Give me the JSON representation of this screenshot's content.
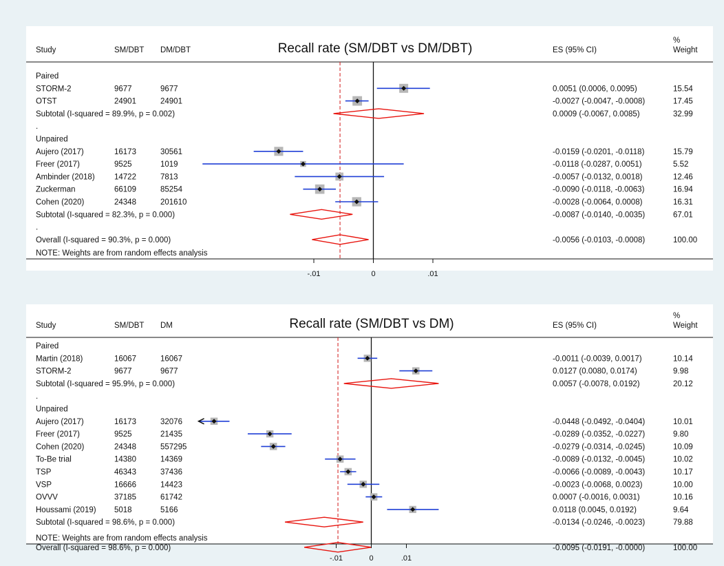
{
  "chart_data": [
    {
      "type": "forest",
      "title": "Recall rate (SM/DBT vs DM/DBT)",
      "columns": {
        "study": "Study",
        "n1": "SM/DBT",
        "n2": "DM/DBT",
        "es": "ES (95% CI)",
        "weight_line1": "%",
        "weight_line2": "Weight"
      },
      "null_line": 0,
      "overall_line": -0.0056,
      "x_ticks": [
        -0.01,
        0,
        0.01
      ],
      "x_tick_labels": [
        "-.01",
        "0",
        ".01"
      ],
      "note": "NOTE: Weights are from random effects analysis",
      "rows": [
        {
          "kind": "group",
          "label": "Paired"
        },
        {
          "kind": "study",
          "label": "STORM-2",
          "n1": "9677",
          "n2": "9677",
          "es": 0.0051,
          "lo": 0.0006,
          "hi": 0.0095,
          "es_text": "0.0051 (0.0006, 0.0095)",
          "weight": "15.54"
        },
        {
          "kind": "study",
          "label": "OTST",
          "n1": "24901",
          "n2": "24901",
          "es": -0.0027,
          "lo": -0.0047,
          "hi": -0.0008,
          "es_text": "-0.0027 (-0.0047, -0.0008)",
          "weight": "17.45"
        },
        {
          "kind": "subtotal",
          "label": "Subtotal  (I-squared = 89.9%, p = 0.002)",
          "es": 0.0009,
          "lo": -0.0067,
          "hi": 0.0085,
          "es_text": "0.0009 (-0.0067, 0.0085)",
          "weight": "32.99"
        },
        {
          "kind": "dot",
          "label": "."
        },
        {
          "kind": "group",
          "label": "Unpaired"
        },
        {
          "kind": "study",
          "label": "Aujero (2017)",
          "n1": "16173",
          "n2": "30561",
          "es": -0.0159,
          "lo": -0.0201,
          "hi": -0.0118,
          "es_text": "-0.0159 (-0.0201, -0.0118)",
          "weight": "15.79"
        },
        {
          "kind": "study",
          "label": "Freer (2017)",
          "n1": "9525",
          "n2": "1019",
          "es": -0.0118,
          "lo": -0.0287,
          "hi": 0.0051,
          "es_text": "-0.0118 (-0.0287, 0.0051)",
          "weight": "5.52"
        },
        {
          "kind": "study",
          "label": "Ambinder (2018)",
          "n1": "14722",
          "n2": "7813",
          "es": -0.0057,
          "lo": -0.0132,
          "hi": 0.0018,
          "es_text": "-0.0057 (-0.0132, 0.0018)",
          "weight": "12.46"
        },
        {
          "kind": "study",
          "label": "Zuckerman",
          "n1": "66109",
          "n2": "85254",
          "es": -0.009,
          "lo": -0.0118,
          "hi": -0.0063,
          "es_text": "-0.0090 (-0.0118, -0.0063)",
          "weight": "16.94"
        },
        {
          "kind": "study",
          "label": "Cohen (2020)",
          "n1": "24348",
          "n2": "201610",
          "es": -0.0028,
          "lo": -0.0064,
          "hi": 0.0008,
          "es_text": "-0.0028 (-0.0064, 0.0008)",
          "weight": "16.31"
        },
        {
          "kind": "subtotal",
          "label": "Subtotal  (I-squared = 82.3%, p = 0.000)",
          "es": -0.0087,
          "lo": -0.014,
          "hi": -0.0035,
          "es_text": "-0.0087 (-0.0140, -0.0035)",
          "weight": "67.01"
        },
        {
          "kind": "dot",
          "label": "."
        },
        {
          "kind": "overall",
          "label": "Overall  (I-squared = 90.3%, p = 0.000)",
          "es": -0.0056,
          "lo": -0.0103,
          "hi": -0.0008,
          "es_text": "-0.0056 (-0.0103, -0.0008)",
          "weight": "100.00"
        }
      ]
    },
    {
      "type": "forest",
      "title": "Recall rate (SM/DBT vs DM)",
      "columns": {
        "study": "Study",
        "n1": "SM/DBT",
        "n2": "DM",
        "es": "ES (95% CI)",
        "weight_line1": "%",
        "weight_line2": "Weight"
      },
      "null_line": 0,
      "overall_line": -0.0095,
      "x_ticks": [
        -0.01,
        0,
        0.01
      ],
      "x_tick_labels": [
        "-.01",
        "0",
        ".01"
      ],
      "note": "NOTE: Weights are from random effects analysis",
      "rows": [
        {
          "kind": "group",
          "label": "Paired"
        },
        {
          "kind": "study",
          "label": "Martin (2018)",
          "n1": "16067",
          "n2": "16067",
          "es": -0.0011,
          "lo": -0.0039,
          "hi": 0.0017,
          "es_text": "-0.0011 (-0.0039, 0.0017)",
          "weight": "10.14"
        },
        {
          "kind": "study",
          "label": "STORM-2",
          "n1": "9677",
          "n2": "9677",
          "es": 0.0127,
          "lo": 0.008,
          "hi": 0.0174,
          "es_text": "0.0127 (0.0080, 0.0174)",
          "weight": "9.98"
        },
        {
          "kind": "subtotal",
          "label": "Subtotal  (I-squared = 95.9%, p = 0.000)",
          "es": 0.0057,
          "lo": -0.0078,
          "hi": 0.0192,
          "es_text": "0.0057 (-0.0078, 0.0192)",
          "weight": "20.12"
        },
        {
          "kind": "dot",
          "label": "."
        },
        {
          "kind": "group",
          "label": "Unpaired"
        },
        {
          "kind": "study",
          "label": "Aujero (2017)",
          "n1": "16173",
          "n2": "32076",
          "es": -0.0448,
          "lo": -0.0492,
          "hi": -0.0404,
          "es_text": "-0.0448 (-0.0492, -0.0404)",
          "weight": "10.01",
          "clipped_left": true
        },
        {
          "kind": "study",
          "label": "Freer (2017)",
          "n1": "9525",
          "n2": "21435",
          "es": -0.0289,
          "lo": -0.0352,
          "hi": -0.0227,
          "es_text": "-0.0289 (-0.0352, -0.0227)",
          "weight": "9.80"
        },
        {
          "kind": "study",
          "label": "Cohen (2020)",
          "n1": "24348",
          "n2": "557295",
          "es": -0.0279,
          "lo": -0.0314,
          "hi": -0.0245,
          "es_text": "-0.0279 (-0.0314, -0.0245)",
          "weight": "10.09"
        },
        {
          "kind": "study",
          "label": "To-Be trial",
          "n1": "14380",
          "n2": "14369",
          "es": -0.0089,
          "lo": -0.0132,
          "hi": -0.0045,
          "es_text": "-0.0089 (-0.0132, -0.0045)",
          "weight": "10.02"
        },
        {
          "kind": "study",
          "label": "TSP",
          "n1": "46343",
          "n2": "37436",
          "es": -0.0066,
          "lo": -0.0089,
          "hi": -0.0043,
          "es_text": "-0.0066 (-0.0089, -0.0043)",
          "weight": "10.17"
        },
        {
          "kind": "study",
          "label": "VSP",
          "n1": "16666",
          "n2": "14423",
          "es": -0.0023,
          "lo": -0.0068,
          "hi": 0.0023,
          "es_text": "-0.0023 (-0.0068, 0.0023)",
          "weight": "10.00"
        },
        {
          "kind": "study",
          "label": "OVVV",
          "n1": "37185",
          "n2": "61742",
          "es": 0.0007,
          "lo": -0.0016,
          "hi": 0.0031,
          "es_text": "0.0007 (-0.0016, 0.0031)",
          "weight": "10.16"
        },
        {
          "kind": "study",
          "label": "Houssami (2019)",
          "n1": "5018",
          "n2": "5166",
          "es": 0.0118,
          "lo": 0.0045,
          "hi": 0.0192,
          "es_text": "0.0118 (0.0045, 0.0192)",
          "weight": "9.64"
        },
        {
          "kind": "subtotal",
          "label": "Subtotal  (I-squared = 98.6%, p = 0.000)",
          "es": -0.0134,
          "lo": -0.0246,
          "hi": -0.0023,
          "es_text": "-0.0134 (-0.0246, -0.0023)",
          "weight": "79.88"
        },
        {
          "kind": "dot",
          "label": "."
        },
        {
          "kind": "overall",
          "label": "Overall  (I-squared = 98.6%, p = 0.000)",
          "es": -0.0095,
          "lo": -0.0191,
          "hi": -0.0,
          "es_text": "-0.0095 (-0.0191, -0.0000)",
          "weight": "100.00"
        }
      ]
    }
  ],
  "colors": {
    "background": "#eaf2f5",
    "panel": "#ffffff",
    "ci_line": "#1f3fd6",
    "diamond": "#e8140e",
    "reference_line": "#d42a2a",
    "weight_box": "#b7b7b7",
    "point": "#111111"
  }
}
